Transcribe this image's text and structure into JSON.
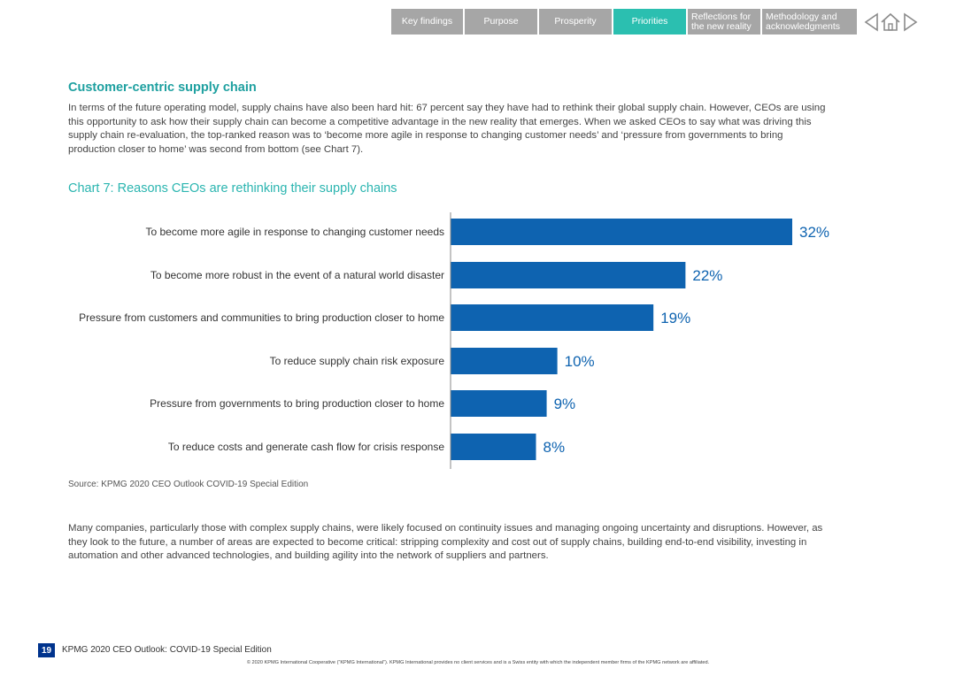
{
  "nav": {
    "tabs": [
      {
        "label": "Key findings"
      },
      {
        "label": "Purpose"
      },
      {
        "label": "Prosperity"
      },
      {
        "label": "Priorities"
      },
      {
        "label": "Reflections for the new reality"
      },
      {
        "label": "Methodology and acknowledgments"
      }
    ],
    "active_tab": "Priorities",
    "icons": [
      "previous-page-icon",
      "home-icon",
      "next-page-icon"
    ]
  },
  "section": {
    "heading": "Customer-centric supply chain",
    "intro": "In terms of the future operating model, supply chains have also been hard hit: 67 percent say they have had to rethink their global supply chain. However, CEOs are using this opportunity to ask how their supply chain can become a competitive advantage in the new reality that emerges. When we asked CEOs to say what was driving this supply chain re-evaluation, the top-ranked reason was to ‘become more agile in response to changing customer needs’ and ‘pressure from governments to bring production closer to home’ was second from bottom (see Chart 7).",
    "closing": "Many companies, particularly those with complex supply chains, were likely focused on continuity issues and managing ongoing uncertainty and disruptions. However, as they look to the future, a number of areas are expected to become critical: stripping complexity and cost out of supply chains, building end-to-end visibility, investing in automation and other advanced technologies, and building agility into the network of suppliers and partners."
  },
  "chart_data": {
    "type": "bar",
    "orientation": "horizontal",
    "title": "Chart 7: Reasons CEOs are rethinking their supply chains",
    "categories": [
      "To become more agile in response to changing customer needs",
      "To become more robust in the event of a natural world disaster",
      "Pressure from customers and communities to bring production closer to home",
      "To reduce supply chain risk exposure",
      "Pressure from governments to bring production closer to home",
      "To reduce costs and generate cash flow for crisis response"
    ],
    "values": [
      32,
      22,
      19,
      10,
      9,
      8
    ],
    "value_labels": [
      "32%",
      "22%",
      "19%",
      "10%",
      "9%",
      "8%"
    ],
    "unit": "%",
    "xlim": [
      0,
      32
    ],
    "grid": false,
    "bar_color": "#0e63b0",
    "label_color": "#0e63b0",
    "source": "Source: KPMG 2020 CEO Outlook COVID-19 Special Edition"
  },
  "footer": {
    "page_number": "19",
    "title": "KPMG 2020 CEO Outlook: COVID-19 Special Edition",
    "copyright": "© 2020 KPMG International Cooperative (“KPMG International”). KPMG International provides no client services and is a Swiss entity with which the independent member firms of the KPMG network are affiliated."
  },
  "colors": {
    "accent_teal": "#2bbfb0",
    "nav_gray": "#a6a6a6",
    "kpmg_blue": "#00338d"
  }
}
